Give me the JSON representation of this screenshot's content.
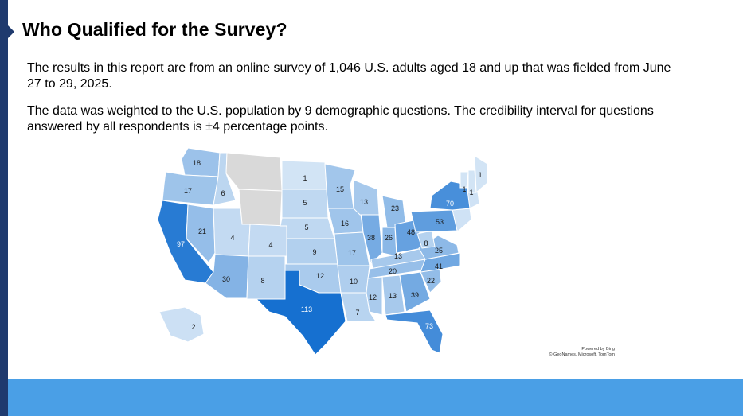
{
  "slide": {
    "title": "Who Qualified for the Survey?",
    "paragraph1": "The results in this report are from an online survey of 1,046 U.S. adults aged 18 and up that was fielded from June 27 to 29, 2025.",
    "paragraph2": "The data was weighted to the U.S. population by 9 demographic questions. The credibility interval for questions answered by all respondents is ±4 percentage points.",
    "attribution_line1": "Powered by Bing",
    "attribution_line2": "© GeoNames, Microsoft, TomTom"
  },
  "colors": {
    "no_data": "#d9d9d9",
    "scale_low": "#deebf7",
    "scale_high": "#1670d0",
    "accent_bar": "#1f3a6e",
    "bottom_band": "#4a9fe6"
  },
  "chart_data": {
    "type": "map",
    "title": "",
    "states": [
      {
        "state": "WA",
        "value": 18
      },
      {
        "state": "OR",
        "value": 17
      },
      {
        "state": "CA",
        "value": 97
      },
      {
        "state": "ID",
        "value": 6
      },
      {
        "state": "NV",
        "value": 21
      },
      {
        "state": "MT",
        "value": null
      },
      {
        "state": "WY",
        "value": null
      },
      {
        "state": "UT",
        "value": 4
      },
      {
        "state": "AZ",
        "value": 30
      },
      {
        "state": "CO",
        "value": 4
      },
      {
        "state": "NM",
        "value": 8
      },
      {
        "state": "ND",
        "value": 1
      },
      {
        "state": "SD",
        "value": 5
      },
      {
        "state": "NE",
        "value": 5
      },
      {
        "state": "KS",
        "value": 9
      },
      {
        "state": "OK",
        "value": 12
      },
      {
        "state": "TX",
        "value": 113
      },
      {
        "state": "MN",
        "value": 15
      },
      {
        "state": "IA",
        "value": 16
      },
      {
        "state": "MO",
        "value": 17
      },
      {
        "state": "AR",
        "value": 10
      },
      {
        "state": "LA",
        "value": 7
      },
      {
        "state": "WI",
        "value": 13
      },
      {
        "state": "IL",
        "value": 38
      },
      {
        "state": "MI",
        "value": 23
      },
      {
        "state": "IN",
        "value": 26
      },
      {
        "state": "OH",
        "value": 48
      },
      {
        "state": "KY",
        "value": 13
      },
      {
        "state": "TN",
        "value": 20
      },
      {
        "state": "MS",
        "value": 12
      },
      {
        "state": "AL",
        "value": 13
      },
      {
        "state": "GA",
        "value": 39
      },
      {
        "state": "FL",
        "value": 73
      },
      {
        "state": "SC",
        "value": 22
      },
      {
        "state": "NC",
        "value": 41
      },
      {
        "state": "VA",
        "value": 25
      },
      {
        "state": "WV",
        "value": 8
      },
      {
        "state": "PA",
        "value": 53
      },
      {
        "state": "NY",
        "value": 70
      },
      {
        "state": "VT",
        "value": 1
      },
      {
        "state": "NH",
        "value": 1
      },
      {
        "state": "ME",
        "value": 1
      },
      {
        "state": "AK",
        "value": 2
      }
    ]
  }
}
